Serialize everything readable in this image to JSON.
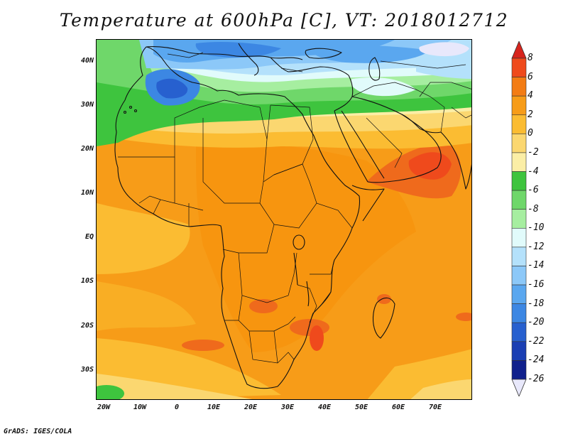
{
  "title": "Temperature at 600hPa [C], VT: 2018012712",
  "y_ticks": [
    "40N",
    "30N",
    "20N",
    "10N",
    "EQ",
    "10S",
    "20S",
    "30S"
  ],
  "x_ticks": [
    "20W",
    "10W",
    "0",
    "10E",
    "20E",
    "30E",
    "40E",
    "50E",
    "60E",
    "70E"
  ],
  "colorbar": {
    "labels": [
      "8",
      "6",
      "4",
      "2",
      "0",
      "-2",
      "-4",
      "-6",
      "-8",
      "-10",
      "-12",
      "-14",
      "-16",
      "-18",
      "-20",
      "-22",
      "-24",
      "-26"
    ],
    "colors": [
      "#d7241d",
      "#ef4a1c",
      "#f37c14",
      "#f79c18",
      "#fbbc32",
      "#fbd770",
      "#fbeea6",
      "#3ec43e",
      "#6fd76a",
      "#a6eea0",
      "#e1fbfb",
      "#b4e1fb",
      "#8cc8f8",
      "#5aa7ef",
      "#3c87e3",
      "#2760cf",
      "#1a3eb3",
      "#10208c",
      "#0a0a60"
    ]
  },
  "map": {
    "lon_range": [
      -23,
      80
    ],
    "lat_range": [
      -37,
      45
    ],
    "colors": {
      "ocean_warm": "#f79c18",
      "land_warm": "#f7950f",
      "hot": "#ef6a1c",
      "hottest": "#ef4a1c",
      "mild": "#fbbc32",
      "cool": "#fbd770",
      "cooler": "#fbeea6",
      "green": "#3ec43e",
      "light_green": "#6fd76a",
      "pale_green": "#a6eea0",
      "cyan": "#e1fbfb",
      "light_blue": "#b4e1fb",
      "blue": "#8cc8f8",
      "mid_blue": "#5aa7ef",
      "dark_blue": "#3c87e3",
      "deep_blue": "#2760cf",
      "lavender": "#e8e8fb"
    }
  },
  "credit": "GrADS: IGES/COLA"
}
